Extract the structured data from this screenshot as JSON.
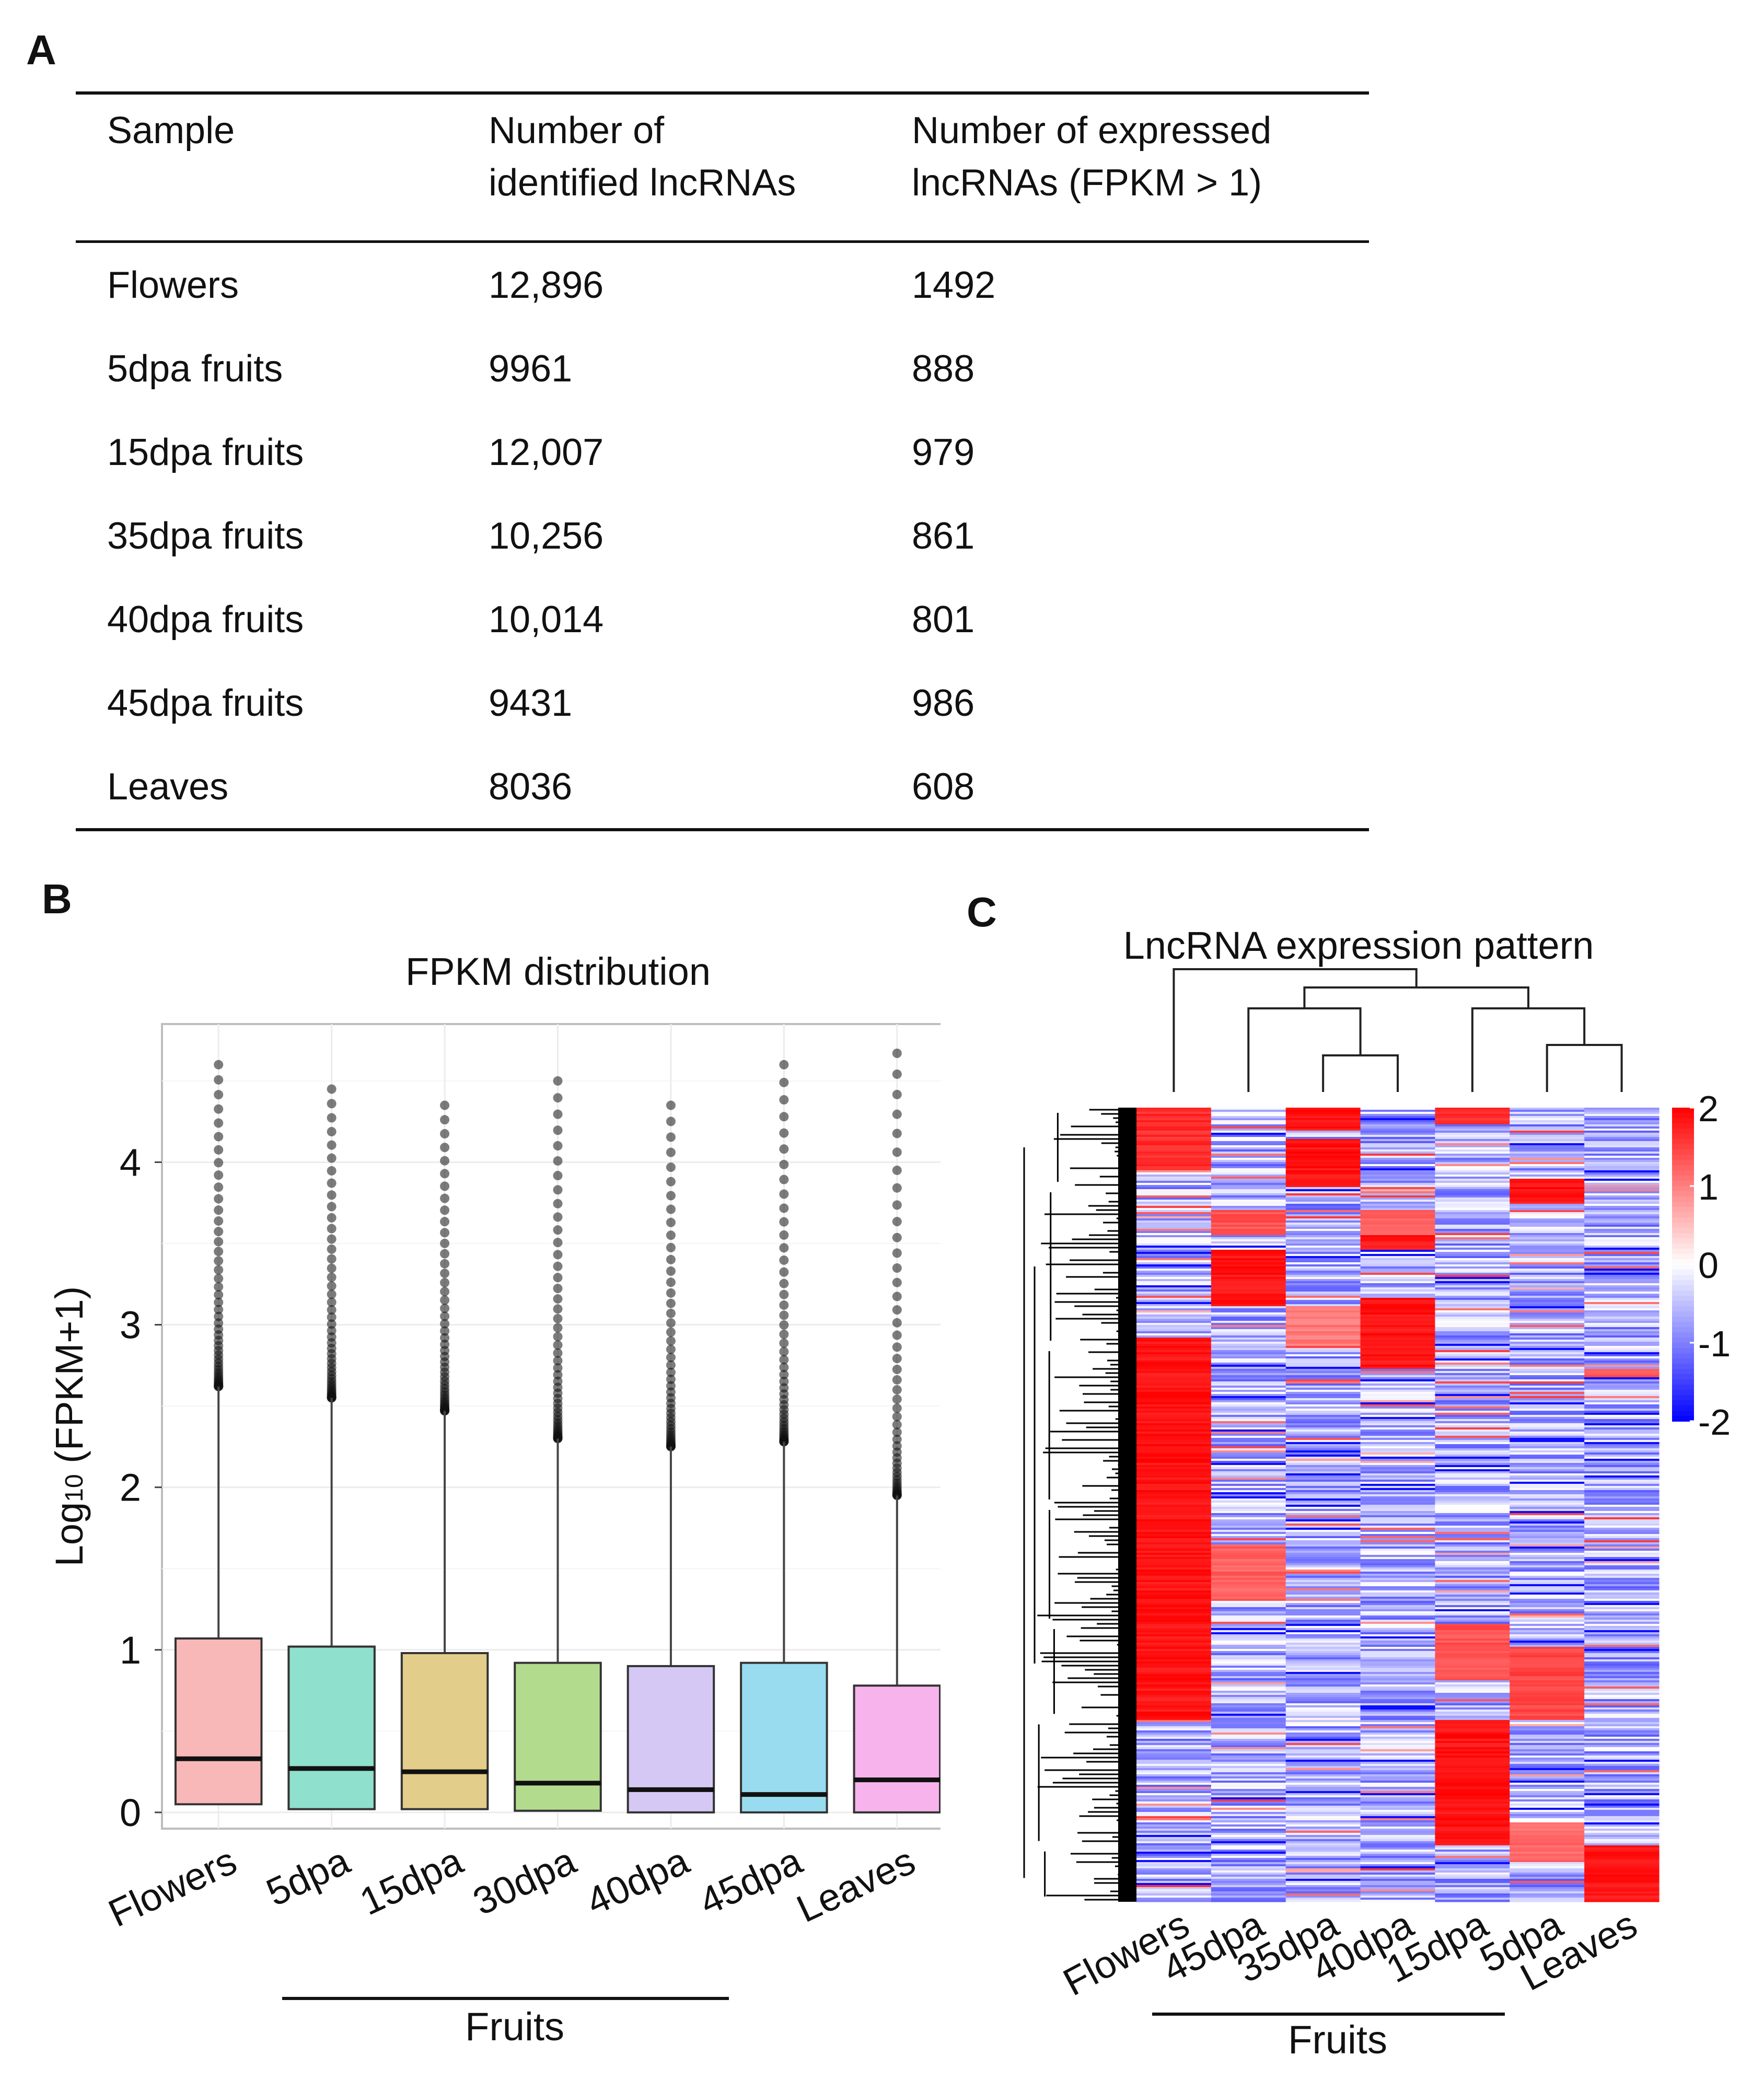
{
  "panels": {
    "a": "A",
    "b": "B",
    "c": "C"
  },
  "table": {
    "headers": {
      "sample": "Sample",
      "identified_1": "Number of",
      "identified_2": "identified lncRNAs",
      "expressed_1": "Number of expressed",
      "expressed_2": "lncRNAs (FPKM > 1)"
    },
    "rows": [
      {
        "sample": "Flowers",
        "identified": "12,896",
        "expressed": "1492"
      },
      {
        "sample": "5dpa fruits",
        "identified": "9961",
        "expressed": "888"
      },
      {
        "sample": "15dpa fruits",
        "identified": "12,007",
        "expressed": "979"
      },
      {
        "sample": "35dpa fruits",
        "identified": "10,256",
        "expressed": "861"
      },
      {
        "sample": "40dpa fruits",
        "identified": "10,014",
        "expressed": "801"
      },
      {
        "sample": "45dpa fruits",
        "identified": "9431",
        "expressed": "986"
      },
      {
        "sample": "Leaves",
        "identified": "8036",
        "expressed": "608"
      }
    ]
  },
  "chart_data": [
    {
      "type": "box",
      "title": "FPKM distribution",
      "ylabel": "Log10 (FPKM+1)",
      "ylabel_main": "Log",
      "ylabel_sub": "10",
      "ylabel_rest": " (FPKM+1)",
      "ylim": [
        -0.1,
        4.85
      ],
      "yticks": [
        0,
        1,
        2,
        3,
        4
      ],
      "categories": [
        "Flowers",
        "5dpa",
        "15dpa",
        "30dpa",
        "40dpa",
        "45dpa",
        "Leaves"
      ],
      "group_label": "Fruits",
      "boxes": [
        {
          "name": "Flowers",
          "q1": 0.05,
          "median": 0.33,
          "q3": 1.07,
          "whisker_high": 2.62,
          "outlier_max": 4.6,
          "color": "#f8b8b8"
        },
        {
          "name": "5dpa",
          "q1": 0.02,
          "median": 0.27,
          "q3": 1.02,
          "whisker_high": 2.55,
          "outlier_max": 4.45,
          "color": "#8fe0cc"
        },
        {
          "name": "15dpa",
          "q1": 0.02,
          "median": 0.25,
          "q3": 0.98,
          "whisker_high": 2.47,
          "outlier_max": 4.35,
          "color": "#e3cd8a"
        },
        {
          "name": "30dpa",
          "q1": 0.01,
          "median": 0.18,
          "q3": 0.92,
          "whisker_high": 2.3,
          "outlier_max": 4.5,
          "color": "#b3db8e"
        },
        {
          "name": "40dpa",
          "q1": 0.0,
          "median": 0.14,
          "q3": 0.9,
          "whisker_high": 2.25,
          "outlier_max": 4.35,
          "color": "#d6c8f5"
        },
        {
          "name": "45dpa",
          "q1": 0.0,
          "median": 0.11,
          "q3": 0.92,
          "whisker_high": 2.28,
          "outlier_max": 4.6,
          "color": "#99dcf0"
        },
        {
          "name": "Leaves",
          "q1": 0.0,
          "median": 0.2,
          "q3": 0.78,
          "whisker_high": 1.95,
          "outlier_max": 4.67,
          "color": "#f7b4ec"
        }
      ]
    },
    {
      "type": "heatmap",
      "title": "LncRNA expression pattern",
      "columns": [
        "Flowers",
        "45dpa",
        "35dpa",
        "40dpa",
        "15dpa",
        "5dpa",
        "Leaves"
      ],
      "group_label": "Fruits",
      "colorbar": {
        "min": -2,
        "max": 2,
        "ticks": [
          2,
          1,
          0,
          -1,
          -2
        ],
        "low_color": "#0000ff",
        "mid_color": "#ffffff",
        "high_color": "#ff0000"
      },
      "high_blocks": [
        {
          "column": "Flowers",
          "from": 0.0,
          "to": 0.08,
          "value": 1.8
        },
        {
          "column": "Flowers",
          "from": 0.29,
          "to": 0.77,
          "value": 2.0
        },
        {
          "column": "45dpa",
          "from": 0.13,
          "to": 0.16,
          "value": 1.5
        },
        {
          "column": "45dpa",
          "from": 0.18,
          "to": 0.25,
          "value": 2.0
        },
        {
          "column": "45dpa",
          "from": 0.55,
          "to": 0.62,
          "value": 1.4
        },
        {
          "column": "35dpa",
          "from": 0.0,
          "to": 0.03,
          "value": 2.0
        },
        {
          "column": "35dpa",
          "from": 0.04,
          "to": 0.1,
          "value": 2.0
        },
        {
          "column": "35dpa",
          "from": 0.25,
          "to": 0.3,
          "value": 1.2
        },
        {
          "column": "40dpa",
          "from": 0.13,
          "to": 0.16,
          "value": 1.4
        },
        {
          "column": "40dpa",
          "from": 0.16,
          "to": 0.18,
          "value": 2.0
        },
        {
          "column": "40dpa",
          "from": 0.24,
          "to": 0.33,
          "value": 2.0
        },
        {
          "column": "15dpa",
          "from": 0.0,
          "to": 0.02,
          "value": 1.8
        },
        {
          "column": "15dpa",
          "from": 0.65,
          "to": 0.72,
          "value": 1.5
        },
        {
          "column": "15dpa",
          "from": 0.77,
          "to": 0.93,
          "value": 2.0
        },
        {
          "column": "5dpa",
          "from": 0.09,
          "to": 0.12,
          "value": 2.0
        },
        {
          "column": "5dpa",
          "from": 0.68,
          "to": 0.77,
          "value": 1.6
        },
        {
          "column": "5dpa",
          "from": 0.9,
          "to": 0.95,
          "value": 1.3
        },
        {
          "column": "Leaves",
          "from": 0.93,
          "to": 1.0,
          "value": 2.0
        },
        {
          "column": "Leaves",
          "from": 0.33,
          "to": 0.34,
          "value": 1.5
        }
      ]
    }
  ]
}
